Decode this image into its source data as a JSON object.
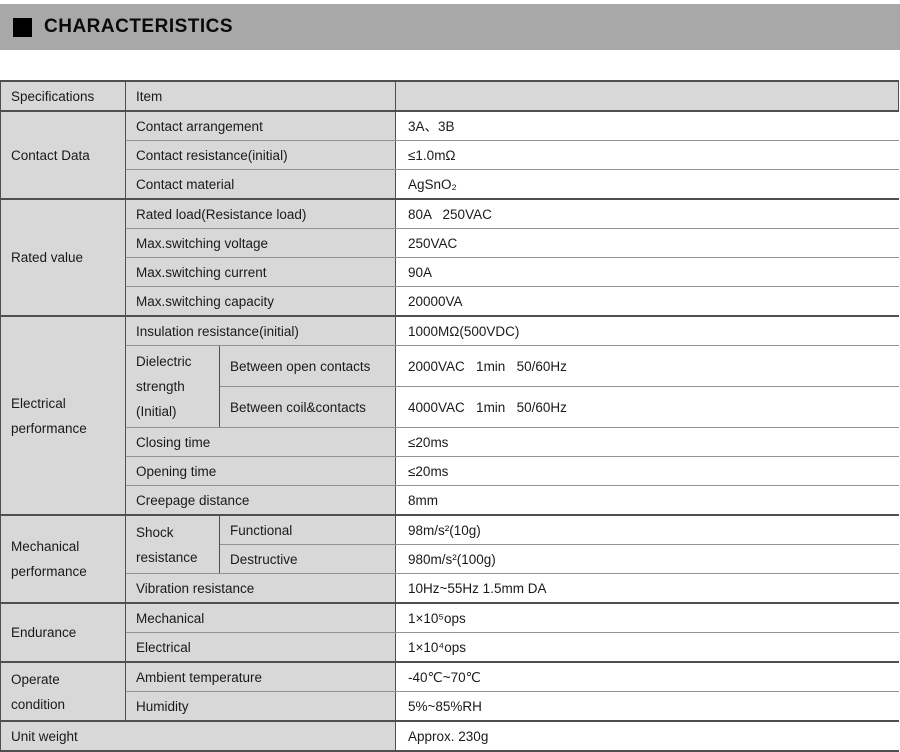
{
  "header": {
    "title": "CHARACTERISTICS",
    "marker_icon": "black-square",
    "bar_color": "#a8a8a8"
  },
  "colors": {
    "label_cell_bg": "#d8d8d8",
    "value_cell_bg": "#ffffff",
    "section_border": "#4f4f4f",
    "row_border": "#929292"
  },
  "table": {
    "headers": {
      "col1": "Specifications",
      "col2": "Item",
      "col3": ""
    },
    "sections": [
      {
        "label": "Contact Data",
        "rows": [
          {
            "item": "Contact arrangement",
            "value": "3A、3B"
          },
          {
            "item": "Contact resistance(initial)",
            "value": "≤1.0mΩ"
          },
          {
            "item": "Contact material",
            "value": "AgSnO₂"
          }
        ]
      },
      {
        "label": "Rated value",
        "rows": [
          {
            "item": "Rated load(Resistance load)",
            "value": "80A   250VAC"
          },
          {
            "item": "Max.switching voltage",
            "value": "250VAC"
          },
          {
            "item": "Max.switching current",
            "value": "90A"
          },
          {
            "item": "Max.switching capacity",
            "value": "20000VA"
          }
        ]
      },
      {
        "label": "Electrical performance",
        "rows": [
          {
            "item": "Insulation resistance(initial)",
            "value": "1000MΩ(500VDC)"
          }
        ],
        "dielectric": {
          "label": "Dielectric strength (Initial)",
          "subrows": [
            {
              "item": "Between open contacts",
              "value": "2000VAC   1min   50/60Hz"
            },
            {
              "item": "Between coil&contacts",
              "value": "4000VAC   1min   50/60Hz"
            }
          ]
        },
        "rows_after": [
          {
            "item": "Closing time",
            "value": "≤20ms"
          },
          {
            "item": "Opening time",
            "value": "≤20ms"
          },
          {
            "item": "Creepage distance",
            "value": "8mm"
          }
        ]
      },
      {
        "label": "Mechanical performance",
        "shock": {
          "label": "Shock resistance",
          "subrows": [
            {
              "item": "Functional",
              "value": "98m/s²(10g)"
            },
            {
              "item": "Destructive",
              "value": "980m/s²(100g)"
            }
          ]
        },
        "rows_after": [
          {
            "item": "Vibration resistance",
            "value": "10Hz~55Hz 1.5mm DA"
          }
        ]
      },
      {
        "label": "Endurance",
        "rows": [
          {
            "item": "Mechanical",
            "value": "1×10⁵ops"
          },
          {
            "item": "Electrical",
            "value": "1×10⁴ops"
          }
        ]
      },
      {
        "label": "Operate condition",
        "rows": [
          {
            "item": "Ambient temperature",
            "value": "-40℃~70℃"
          },
          {
            "item": "Humidity",
            "value": "5%~85%RH"
          }
        ]
      },
      {
        "label": "Unit weight",
        "value": "Approx. 230g"
      }
    ]
  }
}
